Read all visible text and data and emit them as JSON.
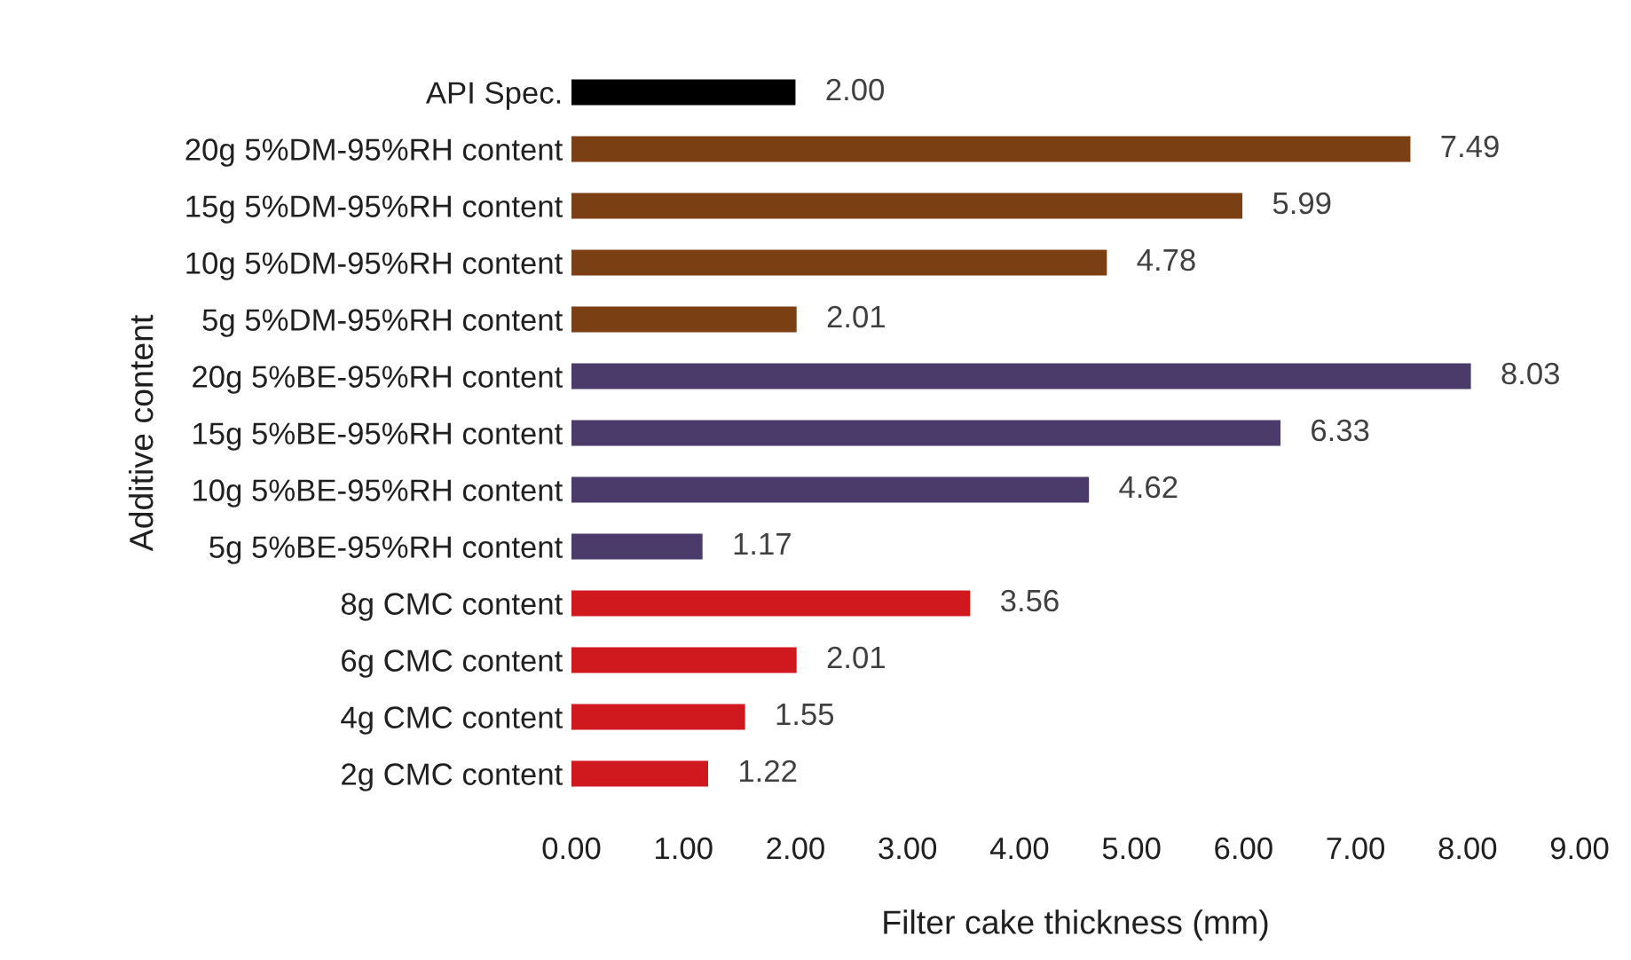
{
  "chart_data": {
    "type": "bar",
    "orientation": "horizontal",
    "xlabel": "Filter cake thickness (mm)",
    "ylabel": "Additive content",
    "categories": [
      "API Spec.",
      "20g 5%DM-95%RH content",
      "15g 5%DM-95%RH content",
      "10g 5%DM-95%RH content",
      "5g 5%DM-95%RH content",
      "20g 5%BE-95%RH content",
      "15g 5%BE-95%RH content",
      "10g 5%BE-95%RH content",
      "5g 5%BE-95%RH content",
      "8g CMC content",
      "6g CMC content",
      "4g CMC content",
      "2g CMC content"
    ],
    "values": [
      2.0,
      7.49,
      5.99,
      4.78,
      2.01,
      8.03,
      6.33,
      4.62,
      1.17,
      3.56,
      2.01,
      1.55,
      1.22
    ],
    "value_labels": [
      "2.00",
      "7.49",
      "5.99",
      "4.78",
      "2.01",
      "8.03",
      "6.33",
      "4.62",
      "1.17",
      "3.56",
      "2.01",
      "1.55",
      "1.22"
    ],
    "colors": [
      "#000000",
      "#7b3f14",
      "#7b3f14",
      "#7b3f14",
      "#7b3f14",
      "#4a3b6b",
      "#4a3b6b",
      "#4a3b6b",
      "#4a3b6b",
      "#d0191f",
      "#d0191f",
      "#d0191f",
      "#d0191f"
    ],
    "xlim": [
      0,
      9
    ],
    "xticks": [
      {
        "value": 0,
        "label": "0.00"
      },
      {
        "value": 1,
        "label": "1.00"
      },
      {
        "value": 2,
        "label": "2.00"
      },
      {
        "value": 3,
        "label": "3.00"
      },
      {
        "value": 4,
        "label": "4.00"
      },
      {
        "value": 5,
        "label": "5.00"
      },
      {
        "value": 6,
        "label": "6.00"
      },
      {
        "value": 7,
        "label": "7.00"
      },
      {
        "value": 8,
        "label": "8.00"
      },
      {
        "value": 9,
        "label": "9.00"
      }
    ],
    "grid": false
  }
}
